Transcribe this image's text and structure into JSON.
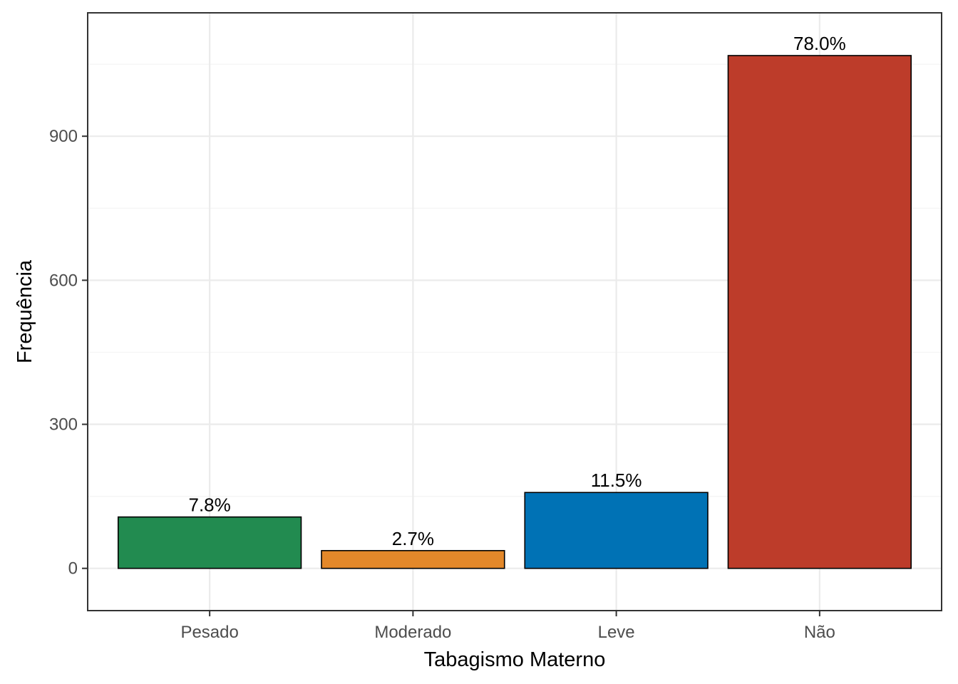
{
  "chart_data": {
    "type": "bar",
    "categories": [
      "Pesado",
      "Moderado",
      "Leve",
      "Não"
    ],
    "values": [
      107,
      37,
      158,
      1068
    ],
    "data_labels": [
      "7.8%",
      "2.7%",
      "11.5%",
      "78.0%"
    ],
    "colors": [
      "#228B50",
      "#E3882A",
      "#0072B5",
      "#BD3C2A"
    ],
    "title": "",
    "xlabel": "Tabagismo Materno",
    "ylabel": "Frequência",
    "ylim": [
      -88,
      1157
    ],
    "yticks": [
      "0",
      "300",
      "600",
      "900"
    ],
    "grid": true,
    "legend": "none"
  }
}
